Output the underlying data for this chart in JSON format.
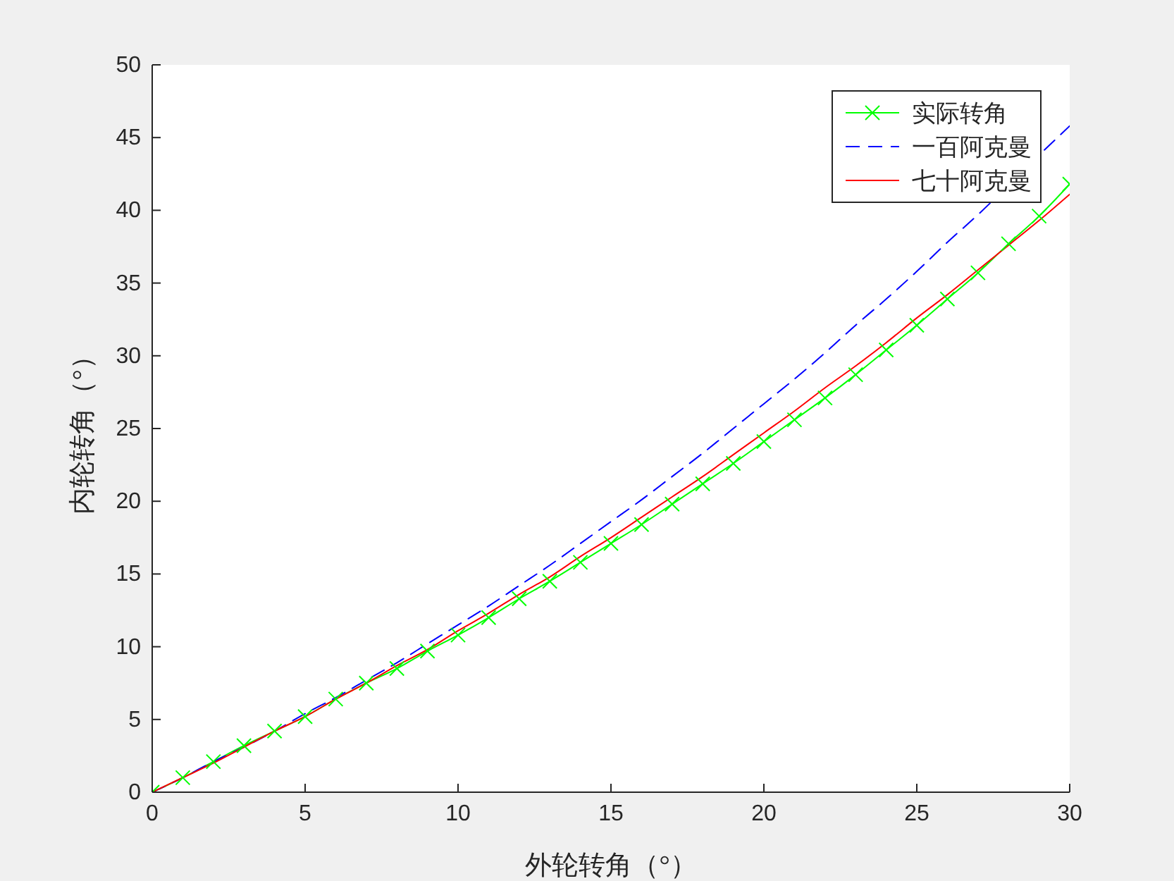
{
  "chart_data": {
    "type": "line",
    "xlabel": "外轮转角（°）",
    "ylabel": "内轮转角（°）",
    "x": [
      0,
      1,
      2,
      3,
      4,
      5,
      6,
      7,
      8,
      9,
      10,
      11,
      12,
      13,
      14,
      15,
      16,
      17,
      18,
      19,
      20,
      21,
      22,
      23,
      24,
      25,
      26,
      27,
      28,
      29,
      30
    ],
    "series": [
      {
        "name": "实际转角",
        "color": "#00ff00",
        "marker": "cross",
        "values": [
          0,
          1.0,
          2.1,
          3.2,
          4.2,
          5.2,
          6.4,
          7.5,
          8.5,
          9.7,
          10.8,
          12.0,
          13.3,
          14.5,
          15.8,
          17.1,
          18.4,
          19.8,
          21.2,
          22.6,
          24.1,
          25.6,
          27.1,
          28.7,
          30.4,
          32.1,
          33.9,
          35.7,
          37.7,
          39.6,
          41.8
        ]
      },
      {
        "name": "一百阿克曼",
        "color": "#0000ff",
        "line_style": "dashed",
        "values": [
          0,
          1.0,
          2.1,
          3.1,
          4.2,
          5.4,
          6.5,
          7.7,
          8.9,
          10.2,
          11.5,
          12.8,
          14.2,
          15.6,
          17.1,
          18.6,
          20.1,
          21.7,
          23.3,
          25.0,
          26.7,
          28.4,
          30.2,
          32.1,
          33.9,
          35.8,
          37.8,
          39.7,
          null,
          43.8,
          45.8
        ]
      },
      {
        "name": "七十阿克曼",
        "color": "#ff0000",
        "values": [
          0,
          1.0,
          2.0,
          3.1,
          4.2,
          5.2,
          6.4,
          7.5,
          8.7,
          9.8,
          11.1,
          12.3,
          13.6,
          14.8,
          16.2,
          17.5,
          18.9,
          20.3,
          21.7,
          23.2,
          24.7,
          26.2,
          27.8,
          29.3,
          30.9,
          32.6,
          34.2,
          35.9,
          37.6,
          39.3,
          41.1
        ]
      }
    ],
    "xlim": [
      0,
      30
    ],
    "xticks": [
      0,
      5,
      10,
      15,
      20,
      25,
      30
    ],
    "ylim": [
      0,
      50
    ],
    "yticks": [
      0,
      5,
      10,
      15,
      20,
      25,
      30,
      35,
      40,
      45,
      50
    ],
    "legend": "top right"
  }
}
